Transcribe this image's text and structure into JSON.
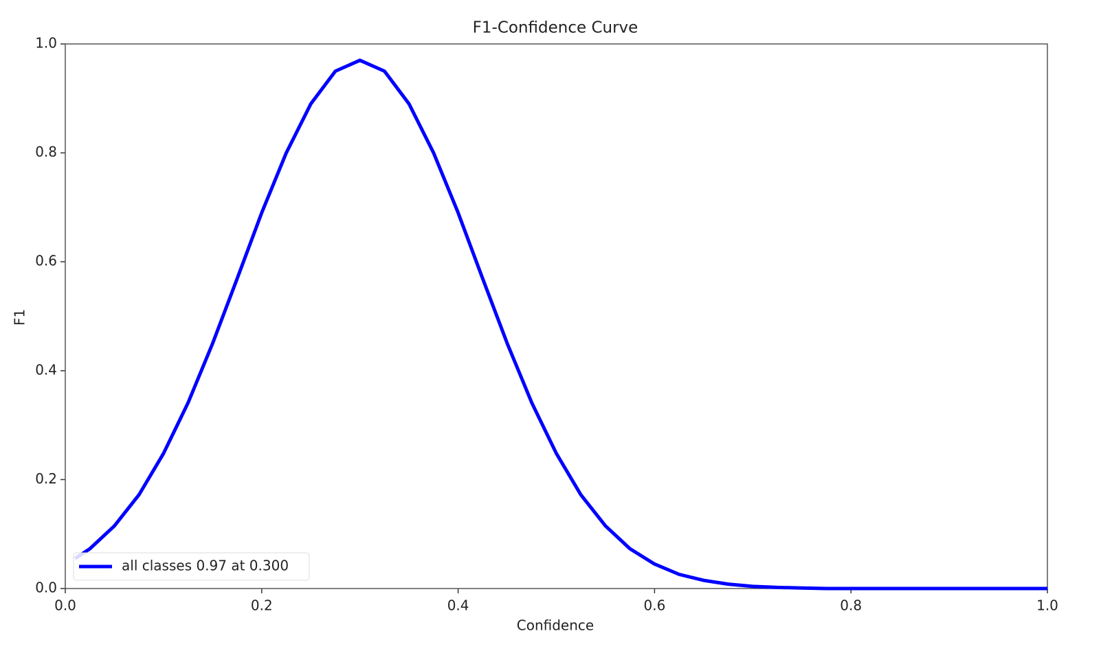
{
  "chart_data": {
    "type": "line",
    "title": "F1-Confidence Curve",
    "x_label": "Confidence",
    "y_label": "F1",
    "x": [
      0.01,
      0.025,
      0.05,
      0.075,
      0.1,
      0.125,
      0.15,
      0.175,
      0.2,
      0.225,
      0.25,
      0.275,
      0.3,
      0.325,
      0.35,
      0.375,
      0.4,
      0.425,
      0.45,
      0.475,
      0.5,
      0.525,
      0.55,
      0.575,
      0.6,
      0.625,
      0.65,
      0.675,
      0.7,
      0.725,
      0.75,
      0.775,
      0.8,
      0.85,
      0.9,
      0.95,
      1.0
    ],
    "series": [
      {
        "name": "all classes 0.97 at 0.300",
        "color": "#0000ff",
        "values": [
          0.055,
          0.073,
          0.115,
          0.172,
          0.248,
          0.341,
          0.45,
          0.569,
          0.69,
          0.8,
          0.89,
          0.95,
          0.97,
          0.95,
          0.89,
          0.8,
          0.69,
          0.569,
          0.45,
          0.341,
          0.248,
          0.172,
          0.115,
          0.073,
          0.045,
          0.026,
          0.015,
          0.008,
          0.004,
          0.002,
          0.001,
          0,
          0,
          0,
          0,
          0,
          0
        ]
      }
    ],
    "xlim": [
      0,
      1
    ],
    "ylim": [
      0,
      1
    ],
    "xticks": [
      {
        "value": 0,
        "label": "0.0"
      },
      0.2,
      0.4,
      0.6,
      0.8,
      {
        "value": 1,
        "label": "1.0"
      }
    ],
    "yticks": [
      {
        "value": 0,
        "label": "0.0"
      },
      0.2,
      0.4,
      0.6,
      0.8,
      {
        "value": 1,
        "label": "1.0"
      }
    ],
    "grid": false,
    "legend": "lower left"
  }
}
